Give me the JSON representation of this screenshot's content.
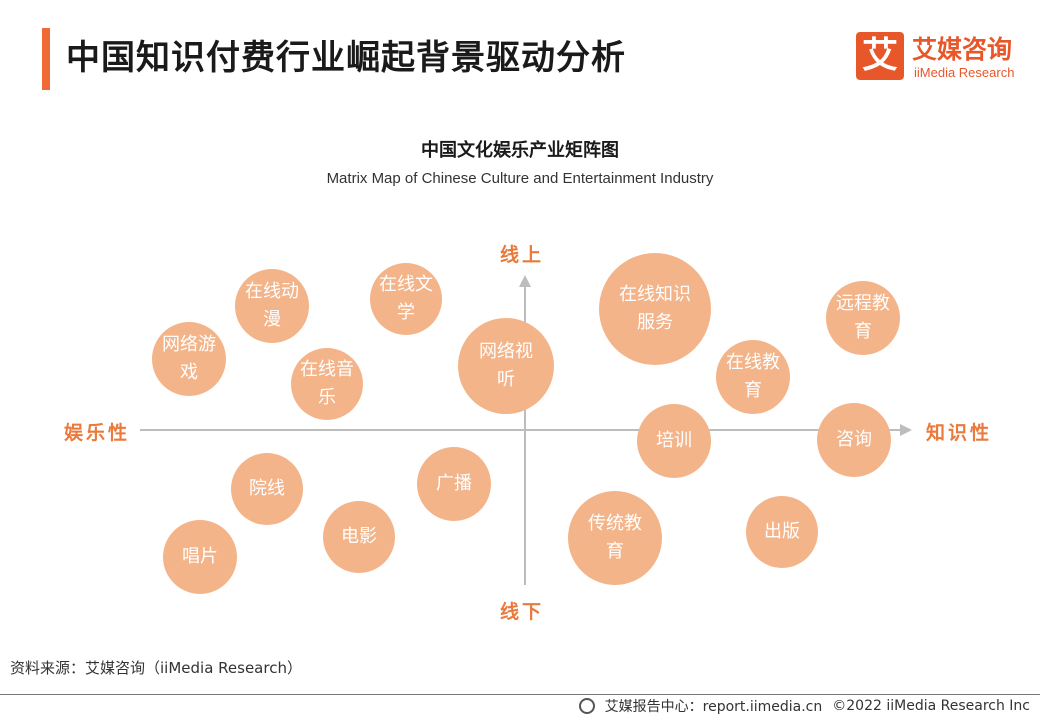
{
  "header": {
    "title": "中国知识付费行业崛起背景驱动分析",
    "logo_mark": "艾",
    "logo_cn": "艾媒咨询",
    "logo_en": "iiMedia Research"
  },
  "diagram": {
    "title_cn": "中国文化娱乐产业矩阵图",
    "title_en": "Matrix Map of Chinese Culture and Entertainment Industry",
    "axis_labels": {
      "top": "线上",
      "bottom": "线下",
      "left": "娱乐性",
      "right": "知识性"
    },
    "bubbles": [
      {
        "label": "在线动漫"
      },
      {
        "label": "在线文学"
      },
      {
        "label": "网络游戏"
      },
      {
        "label": "在线音乐"
      },
      {
        "label": "网络视听"
      },
      {
        "label": "在线知识服务"
      },
      {
        "label": "远程教育"
      },
      {
        "label": "在线教育"
      },
      {
        "label": "培训"
      },
      {
        "label": "咨询"
      },
      {
        "label": "院线"
      },
      {
        "label": "广播"
      },
      {
        "label": "电影"
      },
      {
        "label": "唱片"
      },
      {
        "label": "传统教育"
      },
      {
        "label": "出版"
      }
    ],
    "colors": {
      "bubble": "#f4b48a",
      "axis": "#bdbdbd",
      "accent": "#ea7a3c"
    }
  },
  "source": "资料来源：艾媒咨询（iiMedia Research）",
  "footer": {
    "report": "艾媒报告中心：report.iimedia.cn",
    "copyright": "©2022  iiMedia Research  Inc"
  }
}
